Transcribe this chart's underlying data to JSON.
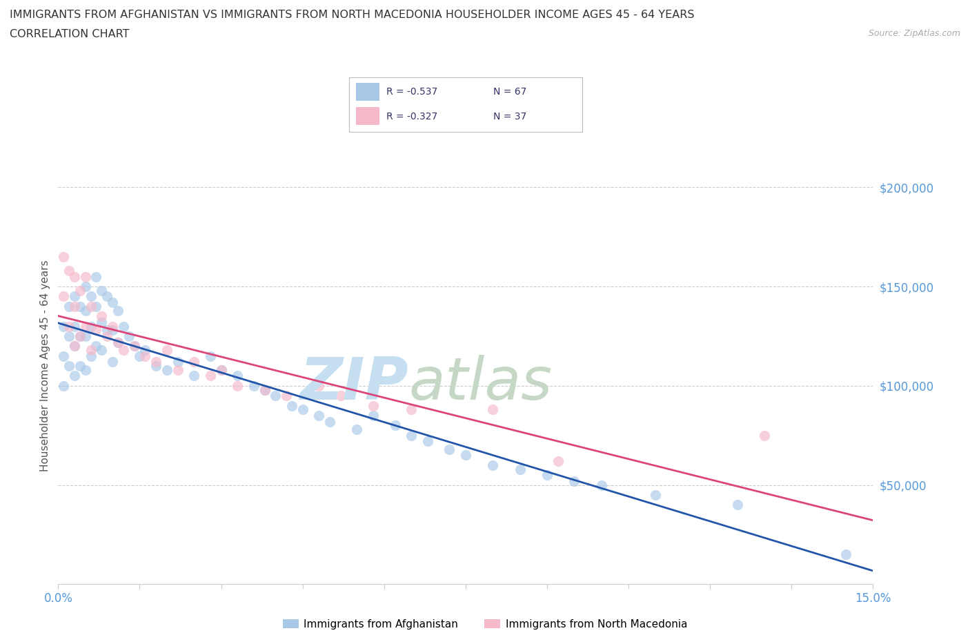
{
  "title_line1": "IMMIGRANTS FROM AFGHANISTAN VS IMMIGRANTS FROM NORTH MACEDONIA HOUSEHOLDER INCOME AGES 45 - 64 YEARS",
  "title_line2": "CORRELATION CHART",
  "source_text": "Source: ZipAtlas.com",
  "ylabel": "Householder Income Ages 45 - 64 years",
  "xmin": 0.0,
  "xmax": 0.15,
  "ymin": 0,
  "ymax": 220000,
  "ytick_vals": [
    50000,
    100000,
    150000,
    200000
  ],
  "ytick_labels": [
    "$50,000",
    "$100,000",
    "$150,000",
    "$200,000"
  ],
  "xtick_vals": [
    0.0,
    0.015,
    0.03,
    0.045,
    0.06,
    0.075,
    0.09,
    0.105,
    0.12,
    0.135,
    0.15
  ],
  "afghanistan_color": "#a8c8e8",
  "north_macedonia_color": "#f5b8c8",
  "afghanistan_line_color": "#2255aa",
  "north_macedonia_line_color": "#dd4477",
  "tick_label_color": "#5599dd",
  "grid_color": "#cccccc",
  "title_color": "#333333",
  "ylabel_color": "#555555",
  "afghanistan_R": -0.537,
  "afghanistan_N": 67,
  "north_macedonia_R": -0.327,
  "north_macedonia_N": 37,
  "afghanistan_x": [
    0.001,
    0.001,
    0.001,
    0.002,
    0.002,
    0.002,
    0.003,
    0.003,
    0.003,
    0.003,
    0.004,
    0.004,
    0.004,
    0.005,
    0.005,
    0.005,
    0.005,
    0.006,
    0.006,
    0.006,
    0.007,
    0.007,
    0.007,
    0.008,
    0.008,
    0.008,
    0.009,
    0.009,
    0.01,
    0.01,
    0.01,
    0.011,
    0.011,
    0.012,
    0.013,
    0.014,
    0.015,
    0.016,
    0.018,
    0.02,
    0.022,
    0.025,
    0.028,
    0.03,
    0.033,
    0.036,
    0.038,
    0.04,
    0.043,
    0.045,
    0.048,
    0.05,
    0.055,
    0.058,
    0.062,
    0.065,
    0.068,
    0.072,
    0.075,
    0.08,
    0.085,
    0.09,
    0.095,
    0.1,
    0.11,
    0.125,
    0.145
  ],
  "afghanistan_y": [
    130000,
    115000,
    100000,
    140000,
    125000,
    110000,
    145000,
    130000,
    120000,
    105000,
    140000,
    125000,
    110000,
    150000,
    138000,
    125000,
    108000,
    145000,
    130000,
    115000,
    155000,
    140000,
    120000,
    148000,
    132000,
    118000,
    145000,
    128000,
    142000,
    128000,
    112000,
    138000,
    122000,
    130000,
    125000,
    120000,
    115000,
    118000,
    110000,
    108000,
    112000,
    105000,
    115000,
    108000,
    105000,
    100000,
    98000,
    95000,
    90000,
    88000,
    85000,
    82000,
    78000,
    85000,
    80000,
    75000,
    72000,
    68000,
    65000,
    60000,
    58000,
    55000,
    52000,
    50000,
    45000,
    40000,
    15000
  ],
  "north_macedonia_x": [
    0.001,
    0.001,
    0.002,
    0.002,
    0.003,
    0.003,
    0.003,
    0.004,
    0.004,
    0.005,
    0.005,
    0.006,
    0.006,
    0.007,
    0.008,
    0.009,
    0.01,
    0.011,
    0.012,
    0.014,
    0.016,
    0.018,
    0.02,
    0.022,
    0.025,
    0.028,
    0.03,
    0.033,
    0.038,
    0.042,
    0.048,
    0.052,
    0.058,
    0.065,
    0.08,
    0.092,
    0.13
  ],
  "north_macedonia_y": [
    165000,
    145000,
    158000,
    130000,
    155000,
    140000,
    120000,
    148000,
    125000,
    155000,
    130000,
    140000,
    118000,
    128000,
    135000,
    125000,
    130000,
    122000,
    118000,
    120000,
    115000,
    112000,
    118000,
    108000,
    112000,
    105000,
    108000,
    100000,
    98000,
    95000,
    100000,
    95000,
    90000,
    88000,
    88000,
    62000,
    75000
  ]
}
